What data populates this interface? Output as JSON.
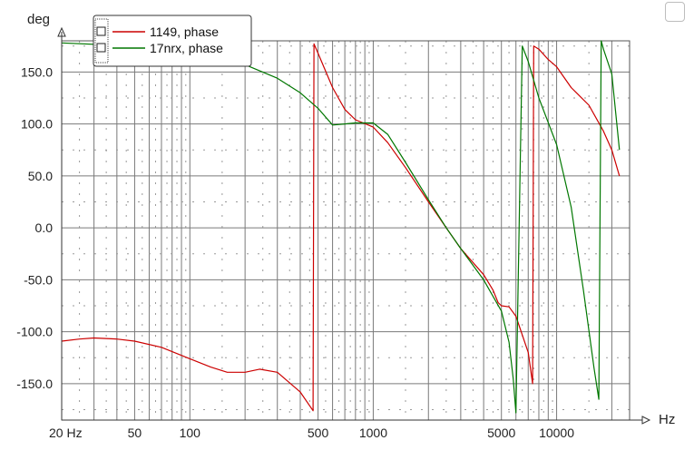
{
  "chart_data": {
    "type": "line",
    "x_scale": "log",
    "xlabel": "Hz",
    "ylabel": "deg",
    "xlim": [
      20,
      25000
    ],
    "ylim": [
      -185,
      180
    ],
    "x_ticks": [
      {
        "value": 20,
        "label": "20 Hz"
      },
      {
        "value": 50,
        "label": "50"
      },
      {
        "value": 100,
        "label": "100"
      },
      {
        "value": 500,
        "label": "500"
      },
      {
        "value": 1000,
        "label": "1000"
      },
      {
        "value": 5000,
        "label": "5000"
      },
      {
        "value": 10000,
        "label": "10000"
      }
    ],
    "y_ticks": [
      {
        "value": 150,
        "label": "150.0"
      },
      {
        "value": 100,
        "label": "100.0"
      },
      {
        "value": 50,
        "label": "50.0"
      },
      {
        "value": 0,
        "label": "0.0"
      },
      {
        "value": -50,
        "label": "-50.0"
      },
      {
        "value": -100,
        "label": "-100.0"
      },
      {
        "value": -150,
        "label": "-150.0"
      }
    ],
    "grid": true,
    "legend_position": "top-left",
    "series": [
      {
        "name": "1149, phase",
        "color": "#cc0000",
        "x": [
          20,
          25,
          30,
          40,
          50,
          70,
          100,
          130,
          160,
          200,
          240,
          300,
          400,
          470,
          475,
          500,
          600,
          700,
          800,
          1000,
          1200,
          1500,
          2000,
          2500,
          3000,
          4000,
          4500,
          4800,
          5000,
          5500,
          6000,
          7000,
          7400,
          7500,
          8000,
          9000,
          10000,
          12000,
          15000,
          18000,
          20000,
          22000
        ],
        "y": [
          -109,
          -107,
          -106,
          -107,
          -109,
          -115,
          -126,
          -134,
          -139,
          -139,
          -136,
          -139,
          -158,
          -176,
          177,
          168,
          135,
          114,
          104,
          97,
          82,
          58,
          25,
          0,
          -20,
          -45,
          -60,
          -72,
          -75,
          -76,
          -85,
          -120,
          -150,
          175,
          172,
          162,
          155,
          135,
          118,
          93,
          75,
          50
        ]
      },
      {
        "name": "17nrx, phase",
        "color": "#007700",
        "x": [
          20,
          50,
          100,
          150,
          200,
          300,
          400,
          500,
          600,
          700,
          800,
          900,
          1000,
          1200,
          1500,
          2000,
          2500,
          3000,
          4000,
          5000,
          5500,
          5800,
          6000,
          6500,
          7000,
          8000,
          10000,
          12000,
          14000,
          16000,
          17000,
          17500,
          18000,
          20000,
          22000
        ],
        "y": [
          178,
          175,
          170,
          165,
          157,
          144,
          130,
          115,
          99,
          100,
          101,
          101,
          101,
          90,
          63,
          27,
          0,
          -20,
          -50,
          -80,
          -110,
          -145,
          -178,
          175,
          160,
          125,
          80,
          20,
          -60,
          -135,
          -165,
          180,
          172,
          148,
          75
        ]
      }
    ]
  },
  "legend": {
    "items": [
      {
        "label": "1149, phase"
      },
      {
        "label": "17nrx, phase"
      }
    ]
  }
}
